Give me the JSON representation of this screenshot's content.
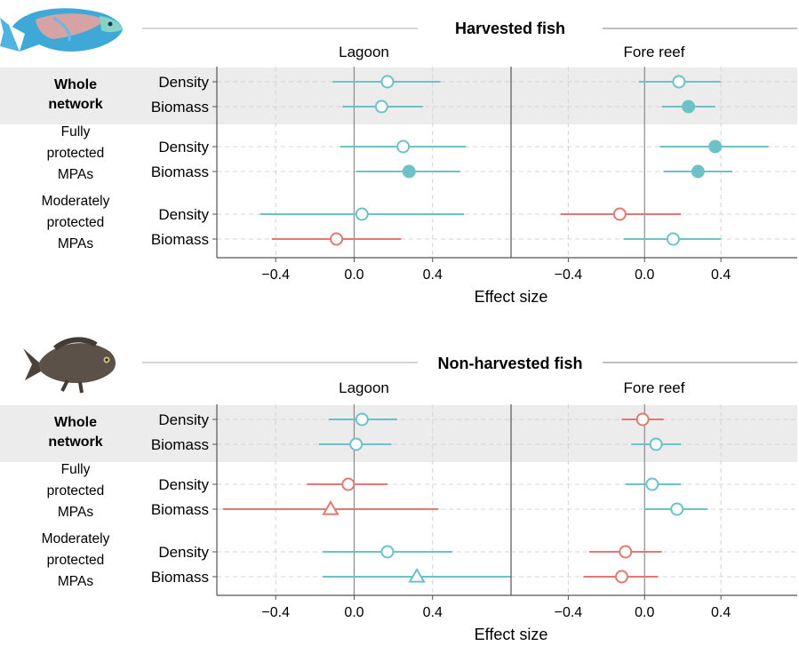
{
  "colors": {
    "teal": "#6cc2c6",
    "red": "#e07a70",
    "band": "#ececec",
    "axis": "#555555",
    "grid": "#d4d4d4",
    "zero": "#8a8a8a"
  },
  "icons": [
    "parrotfish-icon",
    "damselfish-icon"
  ],
  "chart_data": [
    {
      "type": "forest",
      "title": "Harvested fish",
      "xlabel": "Effect size",
      "xlim": [
        -0.7,
        0.8
      ],
      "xticks": [
        "−0.4",
        "0.0",
        "0.4"
      ],
      "xtick_values": [
        -0.4,
        0.0,
        0.4
      ],
      "facets": [
        "Lagoon",
        "Fore reef"
      ],
      "groups": [
        {
          "label_lines": [
            "Whole",
            "network"
          ],
          "bold": true,
          "shaded": true
        },
        {
          "label_lines": [
            "Fully",
            "protected",
            "MPAs"
          ],
          "bold": false,
          "shaded": false
        },
        {
          "label_lines": [
            "Moderately",
            "protected",
            "MPAs"
          ],
          "bold": false,
          "shaded": false
        }
      ],
      "rows": [
        {
          "group": 0,
          "metric": "Density",
          "Lagoon": {
            "est": 0.17,
            "lo": -0.11,
            "hi": 0.44,
            "color": "teal",
            "shape": "open-circle"
          },
          "Fore reef": {
            "est": 0.18,
            "lo": -0.03,
            "hi": 0.4,
            "color": "teal",
            "shape": "open-circle"
          }
        },
        {
          "group": 0,
          "metric": "Biomass",
          "Lagoon": {
            "est": 0.14,
            "lo": -0.06,
            "hi": 0.35,
            "color": "teal",
            "shape": "open-circle"
          },
          "Fore reef": {
            "est": 0.23,
            "lo": 0.09,
            "hi": 0.37,
            "color": "teal",
            "shape": "filled-circle"
          }
        },
        {
          "group": 1,
          "metric": "Density",
          "Lagoon": {
            "est": 0.25,
            "lo": -0.07,
            "hi": 0.57,
            "color": "teal",
            "shape": "open-circle"
          },
          "Fore reef": {
            "est": 0.37,
            "lo": 0.08,
            "hi": 0.65,
            "color": "teal",
            "shape": "filled-circle"
          }
        },
        {
          "group": 1,
          "metric": "Biomass",
          "Lagoon": {
            "est": 0.28,
            "lo": 0.01,
            "hi": 0.54,
            "color": "teal",
            "shape": "filled-circle"
          },
          "Fore reef": {
            "est": 0.28,
            "lo": 0.1,
            "hi": 0.46,
            "color": "teal",
            "shape": "filled-circle"
          }
        },
        {
          "group": 2,
          "metric": "Density",
          "Lagoon": {
            "est": 0.04,
            "lo": -0.48,
            "hi": 0.56,
            "color": "teal",
            "shape": "open-circle"
          },
          "Fore reef": {
            "est": -0.13,
            "lo": -0.44,
            "hi": 0.19,
            "color": "red",
            "shape": "open-circle"
          }
        },
        {
          "group": 2,
          "metric": "Biomass",
          "Lagoon": {
            "est": -0.09,
            "lo": -0.42,
            "hi": 0.24,
            "color": "red",
            "shape": "open-circle"
          },
          "Fore reef": {
            "est": 0.15,
            "lo": -0.11,
            "hi": 0.4,
            "color": "teal",
            "shape": "open-circle"
          }
        }
      ]
    },
    {
      "type": "forest",
      "title": "Non-harvested fish",
      "xlabel": "Effect size",
      "xlim": [
        -0.7,
        0.8
      ],
      "xticks": [
        "−0.4",
        "0.0",
        "0.4"
      ],
      "xtick_values": [
        -0.4,
        0.0,
        0.4
      ],
      "facets": [
        "Lagoon",
        "Fore reef"
      ],
      "groups": [
        {
          "label_lines": [
            "Whole",
            "network"
          ],
          "bold": true,
          "shaded": true
        },
        {
          "label_lines": [
            "Fully",
            "protected",
            "MPAs"
          ],
          "bold": false,
          "shaded": false
        },
        {
          "label_lines": [
            "Moderately",
            "protected",
            "MPAs"
          ],
          "bold": false,
          "shaded": false
        }
      ],
      "rows": [
        {
          "group": 0,
          "metric": "Density",
          "Lagoon": {
            "est": 0.04,
            "lo": -0.13,
            "hi": 0.22,
            "color": "teal",
            "shape": "open-circle"
          },
          "Fore reef": {
            "est": -0.01,
            "lo": -0.12,
            "hi": 0.1,
            "color": "red",
            "shape": "open-circle"
          }
        },
        {
          "group": 0,
          "metric": "Biomass",
          "Lagoon": {
            "est": 0.01,
            "lo": -0.18,
            "hi": 0.19,
            "color": "teal",
            "shape": "open-circle"
          },
          "Fore reef": {
            "est": 0.06,
            "lo": -0.07,
            "hi": 0.19,
            "color": "teal",
            "shape": "open-circle"
          }
        },
        {
          "group": 1,
          "metric": "Density",
          "Lagoon": {
            "est": -0.03,
            "lo": -0.24,
            "hi": 0.17,
            "color": "red",
            "shape": "open-circle"
          },
          "Fore reef": {
            "est": 0.04,
            "lo": -0.1,
            "hi": 0.19,
            "color": "teal",
            "shape": "open-circle"
          }
        },
        {
          "group": 1,
          "metric": "Biomass",
          "Lagoon": {
            "est": -0.12,
            "lo": -0.67,
            "hi": 0.43,
            "color": "red",
            "shape": "open-triangle"
          },
          "Fore reef": {
            "est": 0.17,
            "lo": 0.0,
            "hi": 0.33,
            "color": "teal",
            "shape": "open-circle"
          }
        },
        {
          "group": 2,
          "metric": "Density",
          "Lagoon": {
            "est": 0.17,
            "lo": -0.16,
            "hi": 0.5,
            "color": "teal",
            "shape": "open-circle"
          },
          "Fore reef": {
            "est": -0.1,
            "lo": -0.29,
            "hi": 0.09,
            "color": "red",
            "shape": "open-circle"
          }
        },
        {
          "group": 2,
          "metric": "Biomass",
          "Lagoon": {
            "est": 0.32,
            "lo": -0.16,
            "hi": 0.8,
            "color": "teal",
            "shape": "open-triangle"
          },
          "Fore reef": {
            "est": -0.12,
            "lo": -0.32,
            "hi": 0.07,
            "color": "red",
            "shape": "open-circle"
          }
        }
      ]
    }
  ]
}
